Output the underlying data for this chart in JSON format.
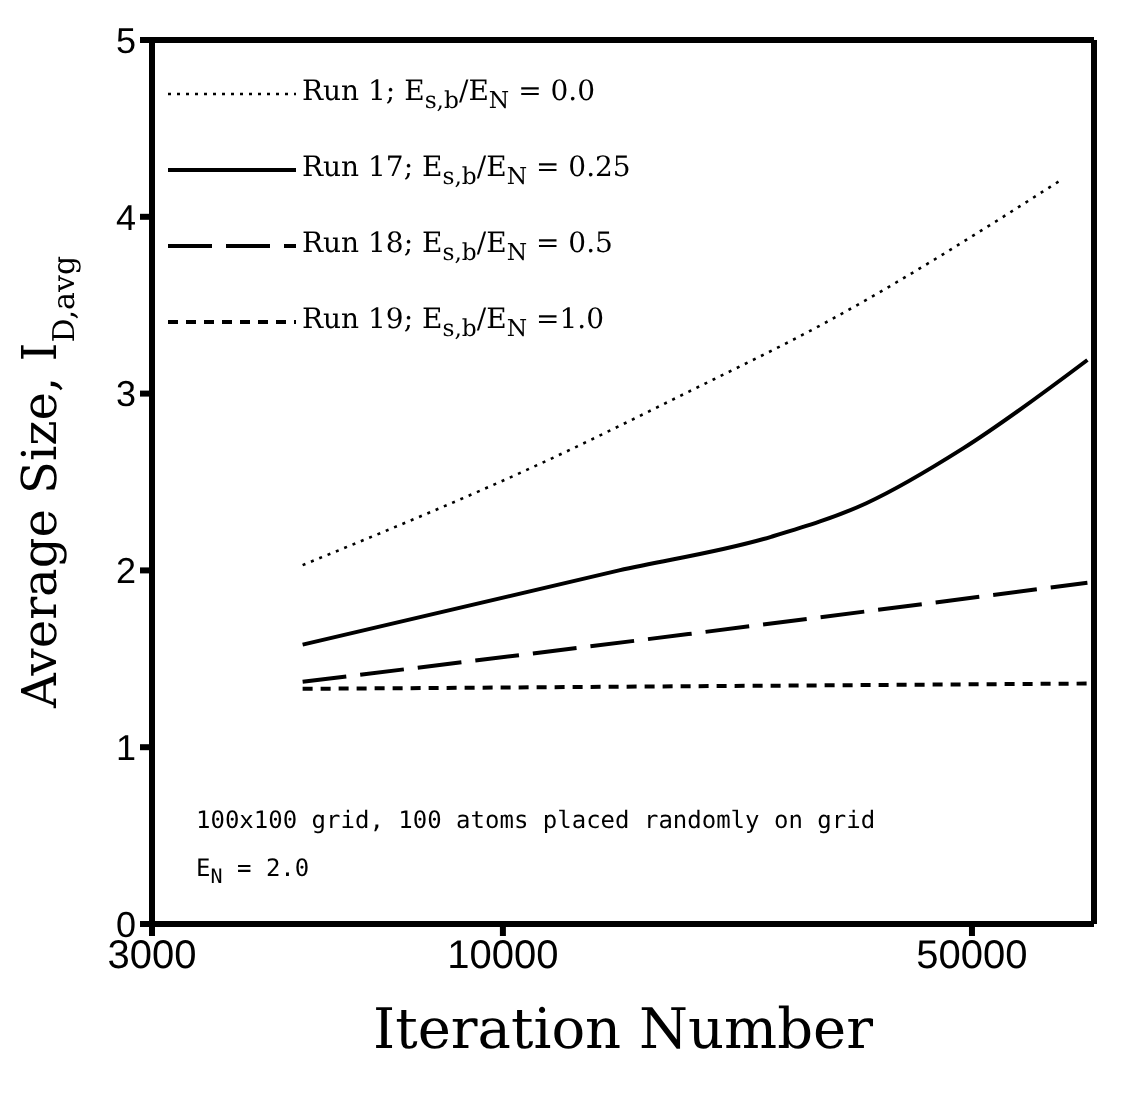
{
  "chart_data": {
    "type": "line",
    "xlabel": "Iteration Number",
    "ylabel": "Average Size, I$_{D,avg}$",
    "log": "x",
    "xlim": [
      3000,
      76000
    ],
    "xticks": [
      3000,
      10000,
      50000
    ],
    "ylim": [
      0,
      5
    ],
    "yticks": [
      0,
      1,
      2,
      3,
      4,
      5
    ],
    "grid": false,
    "legend": "top left",
    "marker": "none",
    "annotations": [
      "100x100 grid, 100 atoms placed randomly on grid",
      "E$_{N}$ = 2.0"
    ],
    "series": [
      {
        "name": "Run 1; E$_{s,b}$/E$_{N}$ = 0.0",
        "color": "#000000",
        "line_style": "dotted",
        "x": [
          5030,
          11770,
          18900,
          30200,
          68000
        ],
        "values": [
          2.03,
          2.63,
          3.01,
          3.4,
          4.21
        ]
      },
      {
        "name": "Run 17; E$_{s,b}$/E$_{N}$ = 0.25",
        "color": "#000000",
        "line_style": "solid",
        "x": [
          5030,
          14900,
          25100,
          34800,
          48500,
          74300
        ],
        "values": [
          1.58,
          2.0,
          2.19,
          2.38,
          2.69,
          3.19
        ]
      },
      {
        "name": "Run 18; E$_{s,b}$/E$_{N}$ = 0.5",
        "color": "#000000",
        "line_style": "dashed",
        "x": [
          5030,
          18900,
          74300
        ],
        "values": [
          1.37,
          1.64,
          1.93
        ]
      },
      {
        "name": "Run 19; E$_{s,b}$/E$_{N}$ =1.0",
        "color": "#000000",
        "line_style": "dashed",
        "x": [
          5030,
          74300
        ],
        "values": [
          1.33,
          1.36
        ]
      }
    ]
  }
}
